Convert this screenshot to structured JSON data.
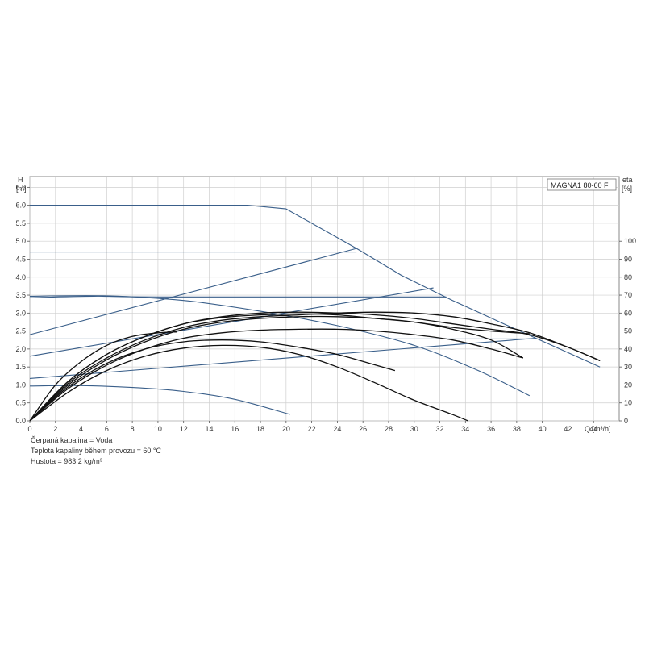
{
  "chart_data": {
    "type": "line",
    "title": "MAGNA1 80-60 F",
    "xlabel": "Q [m³/h]",
    "ylabel_left_name": "H",
    "ylabel_left_unit": "[m]",
    "ylabel_right_name": "eta",
    "ylabel_right_unit": "[%]",
    "xlim": [
      0,
      46
    ],
    "ylim_left": [
      0,
      6.8
    ],
    "ylim_right": [
      0,
      136
    ],
    "x_ticks": [
      "0",
      "2",
      "4",
      "6",
      "8",
      "10",
      "12",
      "14",
      "16",
      "18",
      "20",
      "22",
      "24",
      "26",
      "28",
      "30",
      "32",
      "34",
      "36",
      "38",
      "40",
      "42",
      "44"
    ],
    "y_left_ticks": [
      "0.0",
      "0.5",
      "1.0",
      "1.5",
      "2.0",
      "2.5",
      "3.0",
      "3.5",
      "4.0",
      "4.5",
      "5.0",
      "5.5",
      "6.0",
      "6.5"
    ],
    "y_right_ticks": [
      "0",
      "10",
      "20",
      "30",
      "40",
      "50",
      "60",
      "70",
      "80",
      "90",
      "100"
    ],
    "grid": true,
    "series": [
      {
        "group": "head",
        "color": "#3a5f8a",
        "points": [
          [
            0,
            6.0
          ],
          [
            17,
            6.0
          ],
          [
            20,
            5.9
          ],
          [
            25.5,
            4.8
          ],
          [
            29,
            4.05
          ],
          [
            33,
            3.35
          ],
          [
            37,
            2.7
          ],
          [
            39.5,
            2.3
          ],
          [
            44.5,
            1.5
          ]
        ]
      },
      {
        "group": "head",
        "color": "#3a5f8a",
        "points": [
          [
            0,
            4.7
          ],
          [
            25.5,
            4.7
          ]
        ]
      },
      {
        "group": "head",
        "color": "#3a5f8a",
        "points": [
          [
            0,
            3.43
          ],
          [
            5,
            3.47
          ],
          [
            10,
            3.45
          ],
          [
            32.5,
            3.45
          ]
        ]
      },
      {
        "group": "head",
        "color": "#3a5f8a",
        "points": [
          [
            0,
            2.28
          ],
          [
            39.5,
            2.28
          ]
        ]
      },
      {
        "group": "head",
        "color": "#3a5f8a",
        "points": [
          [
            0,
            3.47
          ],
          [
            6,
            3.48
          ],
          [
            12,
            3.35
          ],
          [
            18,
            3.05
          ],
          [
            24,
            2.65
          ],
          [
            30,
            2.1
          ],
          [
            35,
            1.4
          ],
          [
            39,
            0.7
          ]
        ]
      },
      {
        "group": "head",
        "color": "#3a5f8a",
        "points": [
          [
            0,
            0.97
          ],
          [
            4,
            0.98
          ],
          [
            8,
            0.93
          ],
          [
            12,
            0.82
          ],
          [
            16,
            0.6
          ],
          [
            20.3,
            0.18
          ]
        ]
      },
      {
        "group": "system",
        "color": "#3a5f8a",
        "points": [
          [
            0,
            2.4
          ],
          [
            25.5,
            4.8
          ]
        ]
      },
      {
        "group": "system",
        "color": "#3a5f8a",
        "points": [
          [
            0,
            1.8
          ],
          [
            31.5,
            3.7
          ]
        ]
      },
      {
        "group": "system",
        "color": "#3a5f8a",
        "points": [
          [
            0,
            1.18
          ],
          [
            39.5,
            2.3
          ]
        ]
      },
      {
        "group": "eta",
        "color": "#111111",
        "points": [
          [
            0,
            0
          ],
          [
            3,
            16
          ],
          [
            6,
            28
          ],
          [
            9,
            36
          ],
          [
            12,
            40.5
          ],
          [
            15,
            42
          ],
          [
            18,
            41
          ],
          [
            21,
            37
          ],
          [
            24,
            30
          ],
          [
            27,
            21
          ],
          [
            30,
            11.5
          ],
          [
            33,
            3.5
          ],
          [
            34.2,
            0
          ]
        ]
      },
      {
        "group": "eta",
        "color": "#111111",
        "points": [
          [
            0,
            0
          ],
          [
            3,
            18
          ],
          [
            6,
            31
          ],
          [
            9,
            40
          ],
          [
            12,
            46
          ],
          [
            15,
            49
          ],
          [
            18,
            50.5
          ],
          [
            21,
            51
          ],
          [
            24,
            51
          ],
          [
            27,
            50
          ],
          [
            30,
            48
          ],
          [
            33,
            45
          ],
          [
            36,
            40
          ],
          [
            38.5,
            35
          ]
        ]
      },
      {
        "group": "eta",
        "color": "#111111",
        "points": [
          [
            0,
            0
          ],
          [
            3,
            20
          ],
          [
            6,
            34
          ],
          [
            9,
            44
          ],
          [
            12,
            51
          ],
          [
            15,
            55
          ],
          [
            18,
            57
          ],
          [
            21,
            58
          ],
          [
            24,
            58
          ],
          [
            27,
            57
          ],
          [
            30,
            55
          ],
          [
            33,
            51
          ],
          [
            36,
            45
          ],
          [
            38.5,
            35
          ]
        ]
      },
      {
        "group": "eta",
        "color": "#111111",
        "points": [
          [
            0,
            0
          ],
          [
            3,
            22
          ],
          [
            6,
            37
          ],
          [
            9,
            47
          ],
          [
            12,
            54
          ],
          [
            15,
            58
          ],
          [
            18,
            60
          ],
          [
            21,
            60.5
          ],
          [
            24,
            60
          ],
          [
            27,
            59
          ],
          [
            30,
            57
          ],
          [
            33,
            54
          ],
          [
            36,
            51
          ],
          [
            39,
            48
          ],
          [
            42,
            41
          ],
          [
            44.5,
            33.5
          ]
        ]
      },
      {
        "group": "eta",
        "color": "#111111",
        "points": [
          [
            0,
            0
          ],
          [
            3,
            22
          ],
          [
            6,
            37
          ],
          [
            9,
            47
          ],
          [
            12,
            54
          ],
          [
            15,
            57.5
          ],
          [
            18,
            59
          ],
          [
            21,
            59.5
          ],
          [
            24,
            59
          ],
          [
            27,
            57
          ],
          [
            30,
            55
          ],
          [
            33,
            52
          ],
          [
            36,
            50
          ],
          [
            39,
            48.5
          ]
        ]
      },
      {
        "group": "eta",
        "color": "#111111",
        "points": [
          [
            0,
            0
          ],
          [
            3,
            21
          ],
          [
            6,
            35
          ],
          [
            9,
            45
          ],
          [
            12,
            52
          ],
          [
            15,
            56
          ],
          [
            18,
            58
          ],
          [
            21,
            59
          ],
          [
            24,
            60
          ],
          [
            27,
            60.5
          ],
          [
            30,
            60
          ],
          [
            33,
            58
          ],
          [
            36,
            54
          ],
          [
            39,
            49
          ],
          [
            42,
            41
          ],
          [
            44.5,
            33.5
          ]
        ]
      },
      {
        "group": "eta",
        "color": "#111111",
        "points": [
          [
            0,
            0
          ],
          [
            2,
            20
          ],
          [
            4,
            33
          ],
          [
            6,
            42
          ],
          [
            8,
            47
          ],
          [
            10,
            49
          ],
          [
            11.5,
            49.5
          ]
        ]
      },
      {
        "group": "eta",
        "color": "#111111",
        "points": [
          [
            0,
            0
          ],
          [
            3,
            19
          ],
          [
            6,
            32
          ],
          [
            9,
            40
          ],
          [
            12,
            44
          ],
          [
            15,
            45
          ],
          [
            18,
            44
          ],
          [
            21,
            41
          ],
          [
            24,
            37
          ],
          [
            27,
            31
          ],
          [
            28.5,
            28
          ]
        ]
      }
    ]
  },
  "notes": {
    "line1": "Čerpaná kapalina = Voda",
    "line2": "Teplota kapaliny během provozu = 60 °C",
    "line3": "Hustota = 983.2 kg/m³"
  }
}
